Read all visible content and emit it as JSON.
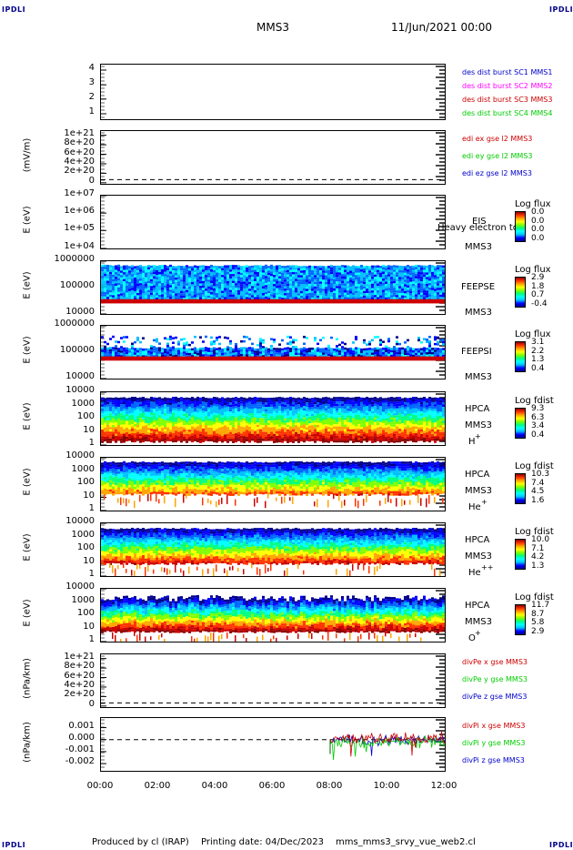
{
  "header": {
    "corner_left": "IPDLI",
    "corner_right": "IPDLI",
    "spacecraft": "MMS3",
    "date": "11/Jun/2021 00:00"
  },
  "footer": {
    "producer": "Produced by cl (IRAP)",
    "printing": "Printing date: 04/Dec/2023",
    "file": "mms_mms3_srvy_vue_web2.cl",
    "corner_left": "IPDLI",
    "corner_right": "IPDLI"
  },
  "colors": {
    "blue": "#0000cc",
    "magenta": "#ff00ff",
    "red": "#cc0000",
    "green": "#00cc00"
  },
  "chart_data": [
    {
      "type": "line",
      "panel": "burst",
      "yticks": [
        "4",
        "3",
        "2",
        "1"
      ],
      "legend": [
        "des dist burst SC1 MMS1",
        "des dist burst SC2 MMS2",
        "des dist burst SC3 MMS3",
        "des dist burst SC4 MMS4"
      ]
    },
    {
      "type": "line",
      "panel": "edi",
      "ylabel": "(mV/m)",
      "yticks": [
        "1e+21",
        "8e+20",
        "6e+20",
        "4e+20",
        "2e+20",
        "0"
      ],
      "legend": [
        "edi ex gse l2 MMS3",
        "edi ey gse l2 MMS3",
        "edi ez gse l2 MMS3"
      ]
    },
    {
      "type": "heatmap",
      "panel": "eis",
      "ylabel": "E (eV)",
      "yticks": [
        "1e+07",
        "1e+06",
        "1e+05",
        "1e+04"
      ],
      "instrument": "EIS",
      "extra_label": "Heavy electron to",
      "sc_label": "MMS3",
      "colorbar_title": "Log flux",
      "colorbar_ticks": [
        "0.0",
        "0.0",
        "0.0",
        "0.0"
      ]
    },
    {
      "type": "heatmap",
      "panel": "feeps-e",
      "ylabel": "E (eV)",
      "yticks": [
        "1000000",
        "100000",
        "10000"
      ],
      "instrument": "FEEPSE",
      "sc_label": "MMS3",
      "colorbar_title": "Log flux",
      "colorbar_ticks": [
        "2.9",
        "1.8",
        "0.7",
        "-0.4"
      ]
    },
    {
      "type": "heatmap",
      "panel": "feeps-i",
      "ylabel": "E (eV)",
      "yticks": [
        "1000000",
        "100000",
        "10000"
      ],
      "instrument": "FEEPSI",
      "sc_label": "MMS3",
      "colorbar_title": "Log flux",
      "colorbar_ticks": [
        "3.1",
        "2.2",
        "1.3",
        "0.4"
      ]
    },
    {
      "type": "heatmap",
      "panel": "hpca-h",
      "ylabel": "E (eV)",
      "yticks": [
        "10000",
        "1000",
        "100",
        "10",
        "1"
      ],
      "instrument": "HPCA",
      "sc_label": "MMS3",
      "species": "H",
      "species_sup": "+",
      "colorbar_title": "Log fdist",
      "colorbar_ticks": [
        "9.3",
        "6.3",
        "3.4",
        "0.4"
      ]
    },
    {
      "type": "heatmap",
      "panel": "hpca-he",
      "ylabel": "E (eV)",
      "yticks": [
        "10000",
        "1000",
        "100",
        "10",
        "1"
      ],
      "instrument": "HPCA",
      "sc_label": "MMS3",
      "species": "He",
      "species_sup": "+",
      "colorbar_title": "Log fdist",
      "colorbar_ticks": [
        "10.3",
        "7.4",
        "4.5",
        "1.6"
      ]
    },
    {
      "type": "heatmap",
      "panel": "hpca-hepp",
      "ylabel": "E (eV)",
      "yticks": [
        "10000",
        "1000",
        "100",
        "10",
        "1"
      ],
      "instrument": "HPCA",
      "sc_label": "MMS3",
      "species": "He",
      "species_sup": "++",
      "colorbar_title": "Log fdist",
      "colorbar_ticks": [
        "10.0",
        "7.1",
        "4.2",
        "1.3"
      ]
    },
    {
      "type": "heatmap",
      "panel": "hpca-o",
      "ylabel": "E (eV)",
      "yticks": [
        "10000",
        "1000",
        "100",
        "10",
        "1"
      ],
      "instrument": "HPCA",
      "sc_label": "MMS3",
      "species": "O",
      "species_sup": "+",
      "colorbar_title": "Log fdist",
      "colorbar_ticks": [
        "11.7",
        "8.7",
        "5.8",
        "2.9"
      ]
    },
    {
      "type": "line",
      "panel": "divpe",
      "ylabel": "(nPa/km)",
      "yticks": [
        "1e+21",
        "8e+20",
        "6e+20",
        "4e+20",
        "2e+20",
        "0"
      ],
      "legend": [
        "divPe x gse MMS3",
        "divPe y gse MMS3",
        "divPe z gse MMS3"
      ]
    },
    {
      "type": "line",
      "panel": "divpi",
      "ylabel": "(nPa/km)",
      "yticks": [
        "0.001",
        "0.000",
        "-0.001",
        "-0.002"
      ],
      "ylim": [
        -0.0026,
        0.0018
      ],
      "x_data_start": "08:00",
      "x_data_end": "12:00",
      "legend": [
        "divPi x gse MMS3",
        "divPi y gse MMS3",
        "divPi z gse MMS3"
      ]
    }
  ],
  "xaxis": {
    "ticks": [
      "00:00",
      "02:00",
      "04:00",
      "06:00",
      "08:00",
      "10:00",
      "12:00"
    ],
    "range": [
      "00:00",
      "12:00"
    ]
  }
}
